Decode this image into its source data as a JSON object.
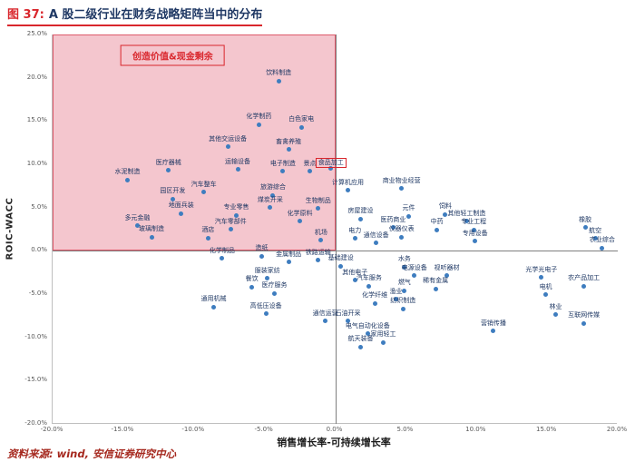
{
  "header": {
    "fig_label": "图 37:",
    "title": "A 股二级行业在财务战略矩阵当中的分布"
  },
  "footer": {
    "source": "资料来源: wind, 安信证券研究中心"
  },
  "colors": {
    "accent_red": "#d9262c",
    "point_blue": "#3e7dbf",
    "label_navy": "#1f3864",
    "region_fill": "#f4c6ce",
    "region_border": "#dd5a6b",
    "source_red": "#a5281e"
  },
  "chart_data": {
    "type": "scatter",
    "title": "A 股二级行业在财务战略矩阵当中的分布",
    "xlabel": "销售增长率-可持续增长率",
    "ylabel": "ROIC-WACC",
    "xlim": [
      -20,
      20
    ],
    "ylim": [
      -20,
      25
    ],
    "x_ticks": [
      "-20.0%",
      "-15.0%",
      "-10.0%",
      "-5.0%",
      "0.0%",
      "5.0%",
      "10.0%",
      "15.0%",
      "20.0%"
    ],
    "y_ticks": [
      "25.0%",
      "20.0%",
      "15.0%",
      "10.0%",
      "5.0%",
      "0.0%",
      "-5.0%",
      "-10.0%",
      "-15.0%",
      "-20.0%"
    ],
    "grid": false,
    "legend": "none",
    "region": {
      "label": "创造价值&现金剩余",
      "x0": -20,
      "x1": 0,
      "y0": 0,
      "y1": 25,
      "label_x": -11.5,
      "label_y": 22.6
    },
    "points": [
      {
        "label": "饮料制造",
        "x": -4.0,
        "y": 19.6
      },
      {
        "label": "化学制药",
        "x": -5.4,
        "y": 14.6
      },
      {
        "label": "白色家电",
        "x": -2.4,
        "y": 14.3
      },
      {
        "label": "其他交运设备",
        "x": -7.6,
        "y": 12.0
      },
      {
        "label": "畜禽养殖",
        "x": -3.3,
        "y": 11.7
      },
      {
        "label": "医疗器械",
        "x": -11.8,
        "y": 9.3
      },
      {
        "label": "运输设备",
        "x": -6.9,
        "y": 9.4
      },
      {
        "label": "电子制造",
        "x": -3.7,
        "y": 9.2
      },
      {
        "label": "景点",
        "x": -1.8,
        "y": 9.2
      },
      {
        "label": "食品加工",
        "x": -0.3,
        "y": 9.5,
        "boxed": true
      },
      {
        "label": "水泥制造",
        "x": -14.7,
        "y": 8.2
      },
      {
        "label": "汽车整车",
        "x": -9.3,
        "y": 6.8
      },
      {
        "label": "园区开发",
        "x": -11.5,
        "y": 6.0
      },
      {
        "label": "旅游综合",
        "x": -4.4,
        "y": 6.4
      },
      {
        "label": "计算机应用",
        "x": 0.9,
        "y": 7.0
      },
      {
        "label": "商业物业经营",
        "x": 4.7,
        "y": 7.2
      },
      {
        "label": "煤炭开采",
        "x": -4.6,
        "y": 5.0
      },
      {
        "label": "生物制品",
        "x": -1.2,
        "y": 4.9
      },
      {
        "label": "地面兵装",
        "x": -10.9,
        "y": 4.3
      },
      {
        "label": "专业零售",
        "x": -7.0,
        "y": 4.1
      },
      {
        "label": "化学原料",
        "x": -2.5,
        "y": 3.4
      },
      {
        "label": "房屋建设",
        "x": 1.8,
        "y": 3.7
      },
      {
        "label": "元件",
        "x": 5.2,
        "y": 4.0
      },
      {
        "label": "饲料",
        "x": 7.8,
        "y": 4.2
      },
      {
        "label": "其他轻工制造",
        "x": 9.3,
        "y": 3.4
      },
      {
        "label": "多元金融",
        "x": -14.0,
        "y": 2.9
      },
      {
        "label": "汽车零部件",
        "x": -7.4,
        "y": 2.5
      },
      {
        "label": "医药商业",
        "x": 4.1,
        "y": 2.7
      },
      {
        "label": "中药",
        "x": 7.2,
        "y": 2.4
      },
      {
        "label": "专业工程",
        "x": 9.8,
        "y": 2.4
      },
      {
        "label": "玻璃制造",
        "x": -13.0,
        "y": 1.6
      },
      {
        "label": "酒店",
        "x": -9.0,
        "y": 1.5
      },
      {
        "label": "仪器仪表",
        "x": 4.7,
        "y": 1.6
      },
      {
        "label": "橡胶",
        "x": 17.7,
        "y": 2.7
      },
      {
        "label": "航空",
        "x": 18.4,
        "y": 1.4
      },
      {
        "label": "机场",
        "x": -1.0,
        "y": 1.2
      },
      {
        "label": "电力",
        "x": 1.4,
        "y": 1.4
      },
      {
        "label": "通信设备",
        "x": 2.9,
        "y": 0.9
      },
      {
        "label": "专用设备",
        "x": 9.9,
        "y": 1.1
      },
      {
        "label": "农业综合",
        "x": 18.9,
        "y": 0.3
      },
      {
        "label": "化学制品",
        "x": -8.0,
        "y": -0.9
      },
      {
        "label": "造纸",
        "x": -5.2,
        "y": -0.6
      },
      {
        "label": "金属制品",
        "x": -3.3,
        "y": -1.3
      },
      {
        "label": "铁路运输",
        "x": -1.2,
        "y": -1.1
      },
      {
        "label": "基础建设",
        "x": 0.4,
        "y": -1.8
      },
      {
        "label": "服装家纺",
        "x": -4.8,
        "y": -3.2
      },
      {
        "label": "餐饮",
        "x": -5.9,
        "y": -4.2
      },
      {
        "label": "医疗服务",
        "x": -4.3,
        "y": -4.9
      },
      {
        "label": "通用机械",
        "x": -8.6,
        "y": -6.5
      },
      {
        "label": "高低压设备",
        "x": -4.9,
        "y": -7.3
      },
      {
        "label": "其他电子",
        "x": 1.4,
        "y": -3.4
      },
      {
        "label": "汽车服务",
        "x": 2.4,
        "y": -4.1
      },
      {
        "label": "水务",
        "x": 4.9,
        "y": -1.9
      },
      {
        "label": "电源设备",
        "x": 5.6,
        "y": -2.9
      },
      {
        "label": "视听器材",
        "x": 7.9,
        "y": -2.9
      },
      {
        "label": "稀有金属",
        "x": 7.1,
        "y": -4.4
      },
      {
        "label": "燃气",
        "x": 4.9,
        "y": -4.6
      },
      {
        "label": "渔业",
        "x": 4.3,
        "y": -5.6
      },
      {
        "label": "化学纤维",
        "x": 2.8,
        "y": -6.1
      },
      {
        "label": "纺织制造",
        "x": 4.8,
        "y": -6.7
      },
      {
        "label": "通信运营",
        "x": -0.7,
        "y": -8.1
      },
      {
        "label": "石油开采",
        "x": 0.9,
        "y": -8.1
      },
      {
        "label": "电气自动化设备",
        "x": 2.3,
        "y": -9.6
      },
      {
        "label": "航天装备",
        "x": 1.8,
        "y": -11.1
      },
      {
        "label": "家用轻工",
        "x": 3.4,
        "y": -10.6
      },
      {
        "label": "光学光电子",
        "x": 14.6,
        "y": -3.1
      },
      {
        "label": "电机",
        "x": 14.9,
        "y": -5.1
      },
      {
        "label": "农产品加工",
        "x": 17.6,
        "y": -4.1
      },
      {
        "label": "林业",
        "x": 15.6,
        "y": -7.4
      },
      {
        "label": "互联网传媒",
        "x": 17.6,
        "y": -8.4
      },
      {
        "label": "营销传播",
        "x": 11.2,
        "y": -9.3
      }
    ]
  }
}
